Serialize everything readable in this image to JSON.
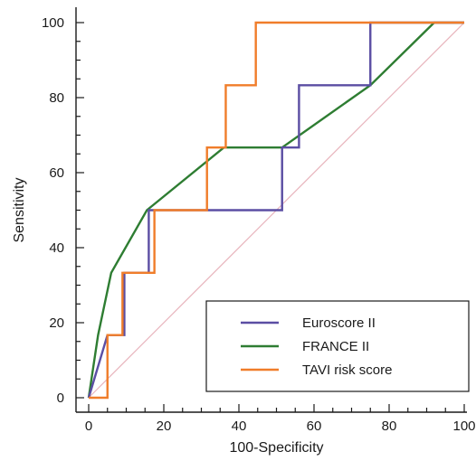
{
  "chart_data": {
    "type": "line",
    "title": "",
    "xlabel": "100-Specificity",
    "ylabel": "Sensitivity",
    "xlim": [
      0,
      100
    ],
    "ylim": [
      0,
      100
    ],
    "xticks": [
      0,
      20,
      40,
      60,
      80,
      100
    ],
    "yticks": [
      0,
      20,
      40,
      60,
      80,
      100
    ],
    "grid": false,
    "legend_position": "bottom-right",
    "series": [
      {
        "name": "Euroscore II",
        "color": "#5b4ea3",
        "x": [
          0,
          5,
          5,
          9.5,
          9.5,
          16,
          16,
          51.5,
          51.5,
          56,
          56,
          75,
          75,
          100
        ],
        "y": [
          0,
          16.7,
          16.7,
          16.7,
          33.3,
          33.3,
          50,
          50,
          66.7,
          66.7,
          83.3,
          83.3,
          100,
          100
        ]
      },
      {
        "name": "FRANCE II",
        "color": "#2e7d32",
        "x": [
          0,
          2.5,
          6,
          15.5,
          36,
          51.5,
          75,
          92,
          100
        ],
        "y": [
          0,
          16.7,
          33.3,
          50,
          66.7,
          66.7,
          83.3,
          100,
          100
        ]
      },
      {
        "name": "TAVI risk score",
        "color": "#f07d2a",
        "x": [
          0,
          5,
          5,
          9,
          9,
          17.5,
          17.5,
          31.5,
          31.5,
          36.5,
          36.5,
          44.5,
          44.5,
          100
        ],
        "y": [
          0,
          0,
          16.7,
          16.7,
          33.3,
          33.3,
          50,
          50,
          66.7,
          66.7,
          83.3,
          83.3,
          100,
          100
        ]
      }
    ],
    "reference_line": {
      "x": [
        0,
        100
      ],
      "y": [
        0,
        100
      ],
      "color": "#e8b4bc"
    }
  }
}
